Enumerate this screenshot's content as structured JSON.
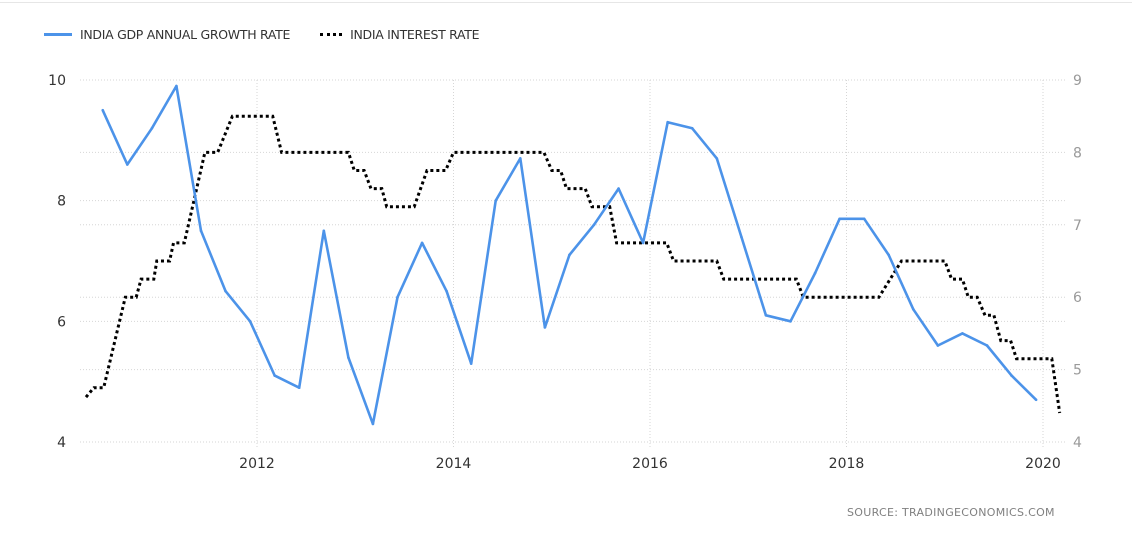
{
  "chart_data": {
    "type": "line",
    "title": "",
    "xlabel": "",
    "ylabel": "",
    "x_ticks": [
      "2012",
      "2014",
      "2016",
      "2018",
      "2020"
    ],
    "y_left_ticks": [
      "4",
      "6",
      "8",
      "10"
    ],
    "y_right_ticks": [
      "4",
      "5",
      "6",
      "7",
      "8",
      "9"
    ],
    "xlim": [
      2010.15,
      2020.25
    ],
    "ylim_left": [
      4,
      10
    ],
    "ylim_right": [
      4,
      9
    ],
    "grid": true,
    "legend_placement": "top-left",
    "series": [
      {
        "name": "INDIA GDP ANNUAL GROWTH RATE",
        "axis": "left",
        "color": "#4c93e9",
        "style": "solid",
        "start": 2010.43,
        "step": 0.25,
        "values": [
          9.5,
          8.6,
          9.2,
          9.9,
          7.5,
          6.5,
          6.0,
          5.1,
          4.9,
          7.5,
          5.4,
          4.3,
          6.4,
          7.3,
          6.5,
          5.3,
          8.0,
          8.7,
          5.9,
          7.1,
          7.6,
          8.2,
          7.3,
          9.3,
          9.2,
          8.7,
          7.4,
          6.1,
          6.0,
          6.8,
          7.7,
          7.7,
          7.1,
          6.2,
          5.6,
          5.8,
          5.6,
          5.1,
          4.7
        ]
      },
      {
        "name": "INDIA INTEREST RATE",
        "axis": "right",
        "color": "#000000",
        "style": "dotted",
        "points": [
          [
            2010.26,
            4.62
          ],
          [
            2010.34,
            4.75
          ],
          [
            2010.44,
            4.75
          ],
          [
            2010.66,
            6.0
          ],
          [
            2010.77,
            6.0
          ],
          [
            2010.82,
            6.25
          ],
          [
            2010.95,
            6.25
          ],
          [
            2010.98,
            6.5
          ],
          [
            2011.11,
            6.5
          ],
          [
            2011.15,
            6.75
          ],
          [
            2011.26,
            6.75
          ],
          [
            2011.47,
            8.0
          ],
          [
            2011.6,
            8.0
          ],
          [
            2011.75,
            8.5
          ],
          [
            2012.16,
            8.5
          ],
          [
            2012.25,
            8.0
          ],
          [
            2012.93,
            8.0
          ],
          [
            2012.99,
            7.75
          ],
          [
            2013.09,
            7.75
          ],
          [
            2013.16,
            7.5
          ],
          [
            2013.27,
            7.5
          ],
          [
            2013.32,
            7.25
          ],
          [
            2013.6,
            7.25
          ],
          [
            2013.73,
            7.75
          ],
          [
            2013.92,
            7.75
          ],
          [
            2014.0,
            8.0
          ],
          [
            2014.92,
            8.0
          ],
          [
            2015.0,
            7.75
          ],
          [
            2015.09,
            7.75
          ],
          [
            2015.15,
            7.5
          ],
          [
            2015.34,
            7.5
          ],
          [
            2015.41,
            7.25
          ],
          [
            2015.59,
            7.25
          ],
          [
            2015.66,
            6.75
          ],
          [
            2016.17,
            6.75
          ],
          [
            2016.24,
            6.5
          ],
          [
            2016.68,
            6.5
          ],
          [
            2016.75,
            6.25
          ],
          [
            2017.49,
            6.25
          ],
          [
            2017.56,
            6.0
          ],
          [
            2018.33,
            6.0
          ],
          [
            2018.56,
            6.5
          ],
          [
            2019.0,
            6.5
          ],
          [
            2019.07,
            6.25
          ],
          [
            2019.18,
            6.25
          ],
          [
            2019.24,
            6.0
          ],
          [
            2019.33,
            6.0
          ],
          [
            2019.41,
            5.75
          ],
          [
            2019.5,
            5.75
          ],
          [
            2019.57,
            5.4
          ],
          [
            2019.67,
            5.4
          ],
          [
            2019.73,
            5.15
          ],
          [
            2020.09,
            5.15
          ],
          [
            2020.17,
            4.4
          ]
        ]
      }
    ]
  },
  "legend": {
    "gdp": "INDIA GDP ANNUAL GROWTH RATE",
    "interest": "INDIA INTEREST RATE"
  },
  "source": "SOURCE:   TRADINGECONOMICS.COM"
}
